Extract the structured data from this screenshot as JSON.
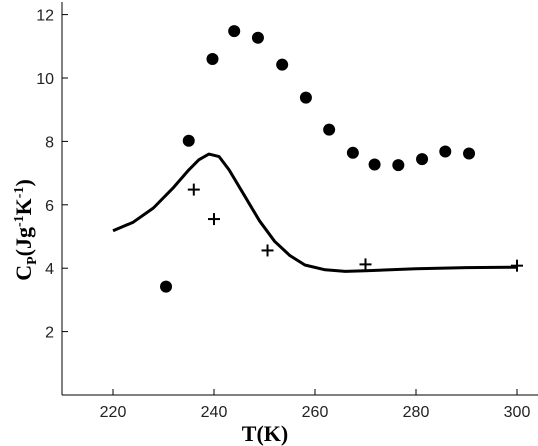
{
  "chart_data": {
    "type": "scatter",
    "xlabel": "T(K)",
    "ylabel": {
      "base": "C",
      "sub": "P",
      "rest1": "(Jg",
      "sup1": "-1",
      "rest2": "K",
      "sup2": "-1",
      "rest3": ")"
    },
    "xlim": [
      210,
      305
    ],
    "ylim": [
      0,
      12.5
    ],
    "x_ticks": [
      220,
      240,
      260,
      280,
      300
    ],
    "y_ticks": [
      2,
      4,
      6,
      8,
      10,
      12
    ],
    "grid": false,
    "series": [
      {
        "marker": "filled-circle",
        "color": "#000000",
        "points": [
          [
            230.5,
            3.42
          ],
          [
            235,
            8.02
          ],
          [
            239.7,
            10.6
          ],
          [
            244,
            11.48
          ],
          [
            248.7,
            11.27
          ],
          [
            253.5,
            10.42
          ],
          [
            258.2,
            9.38
          ],
          [
            262.8,
            8.37
          ],
          [
            267.5,
            7.64
          ],
          [
            271.8,
            7.27
          ],
          [
            276.5,
            7.25
          ],
          [
            281.2,
            7.44
          ],
          [
            285.8,
            7.68
          ],
          [
            290.5,
            7.62
          ]
        ]
      },
      {
        "marker": "plus",
        "color": "#000000",
        "points": [
          [
            236,
            6.48
          ],
          [
            240,
            5.55
          ],
          [
            250.6,
            4.56
          ],
          [
            270,
            4.12
          ],
          [
            300,
            4.08
          ]
        ]
      },
      {
        "marker": "line",
        "color": "#000000",
        "points": [
          [
            220,
            5.18
          ],
          [
            224,
            5.45
          ],
          [
            228,
            5.9
          ],
          [
            232,
            6.55
          ],
          [
            235,
            7.1
          ],
          [
            237,
            7.42
          ],
          [
            239,
            7.6
          ],
          [
            241,
            7.52
          ],
          [
            243,
            7.1
          ],
          [
            246,
            6.3
          ],
          [
            249,
            5.5
          ],
          [
            252,
            4.85
          ],
          [
            255,
            4.4
          ],
          [
            258,
            4.1
          ],
          [
            262,
            3.95
          ],
          [
            266,
            3.9
          ],
          [
            270,
            3.92
          ],
          [
            280,
            3.98
          ],
          [
            290,
            4.02
          ],
          [
            300,
            4.03
          ]
        ]
      }
    ]
  }
}
